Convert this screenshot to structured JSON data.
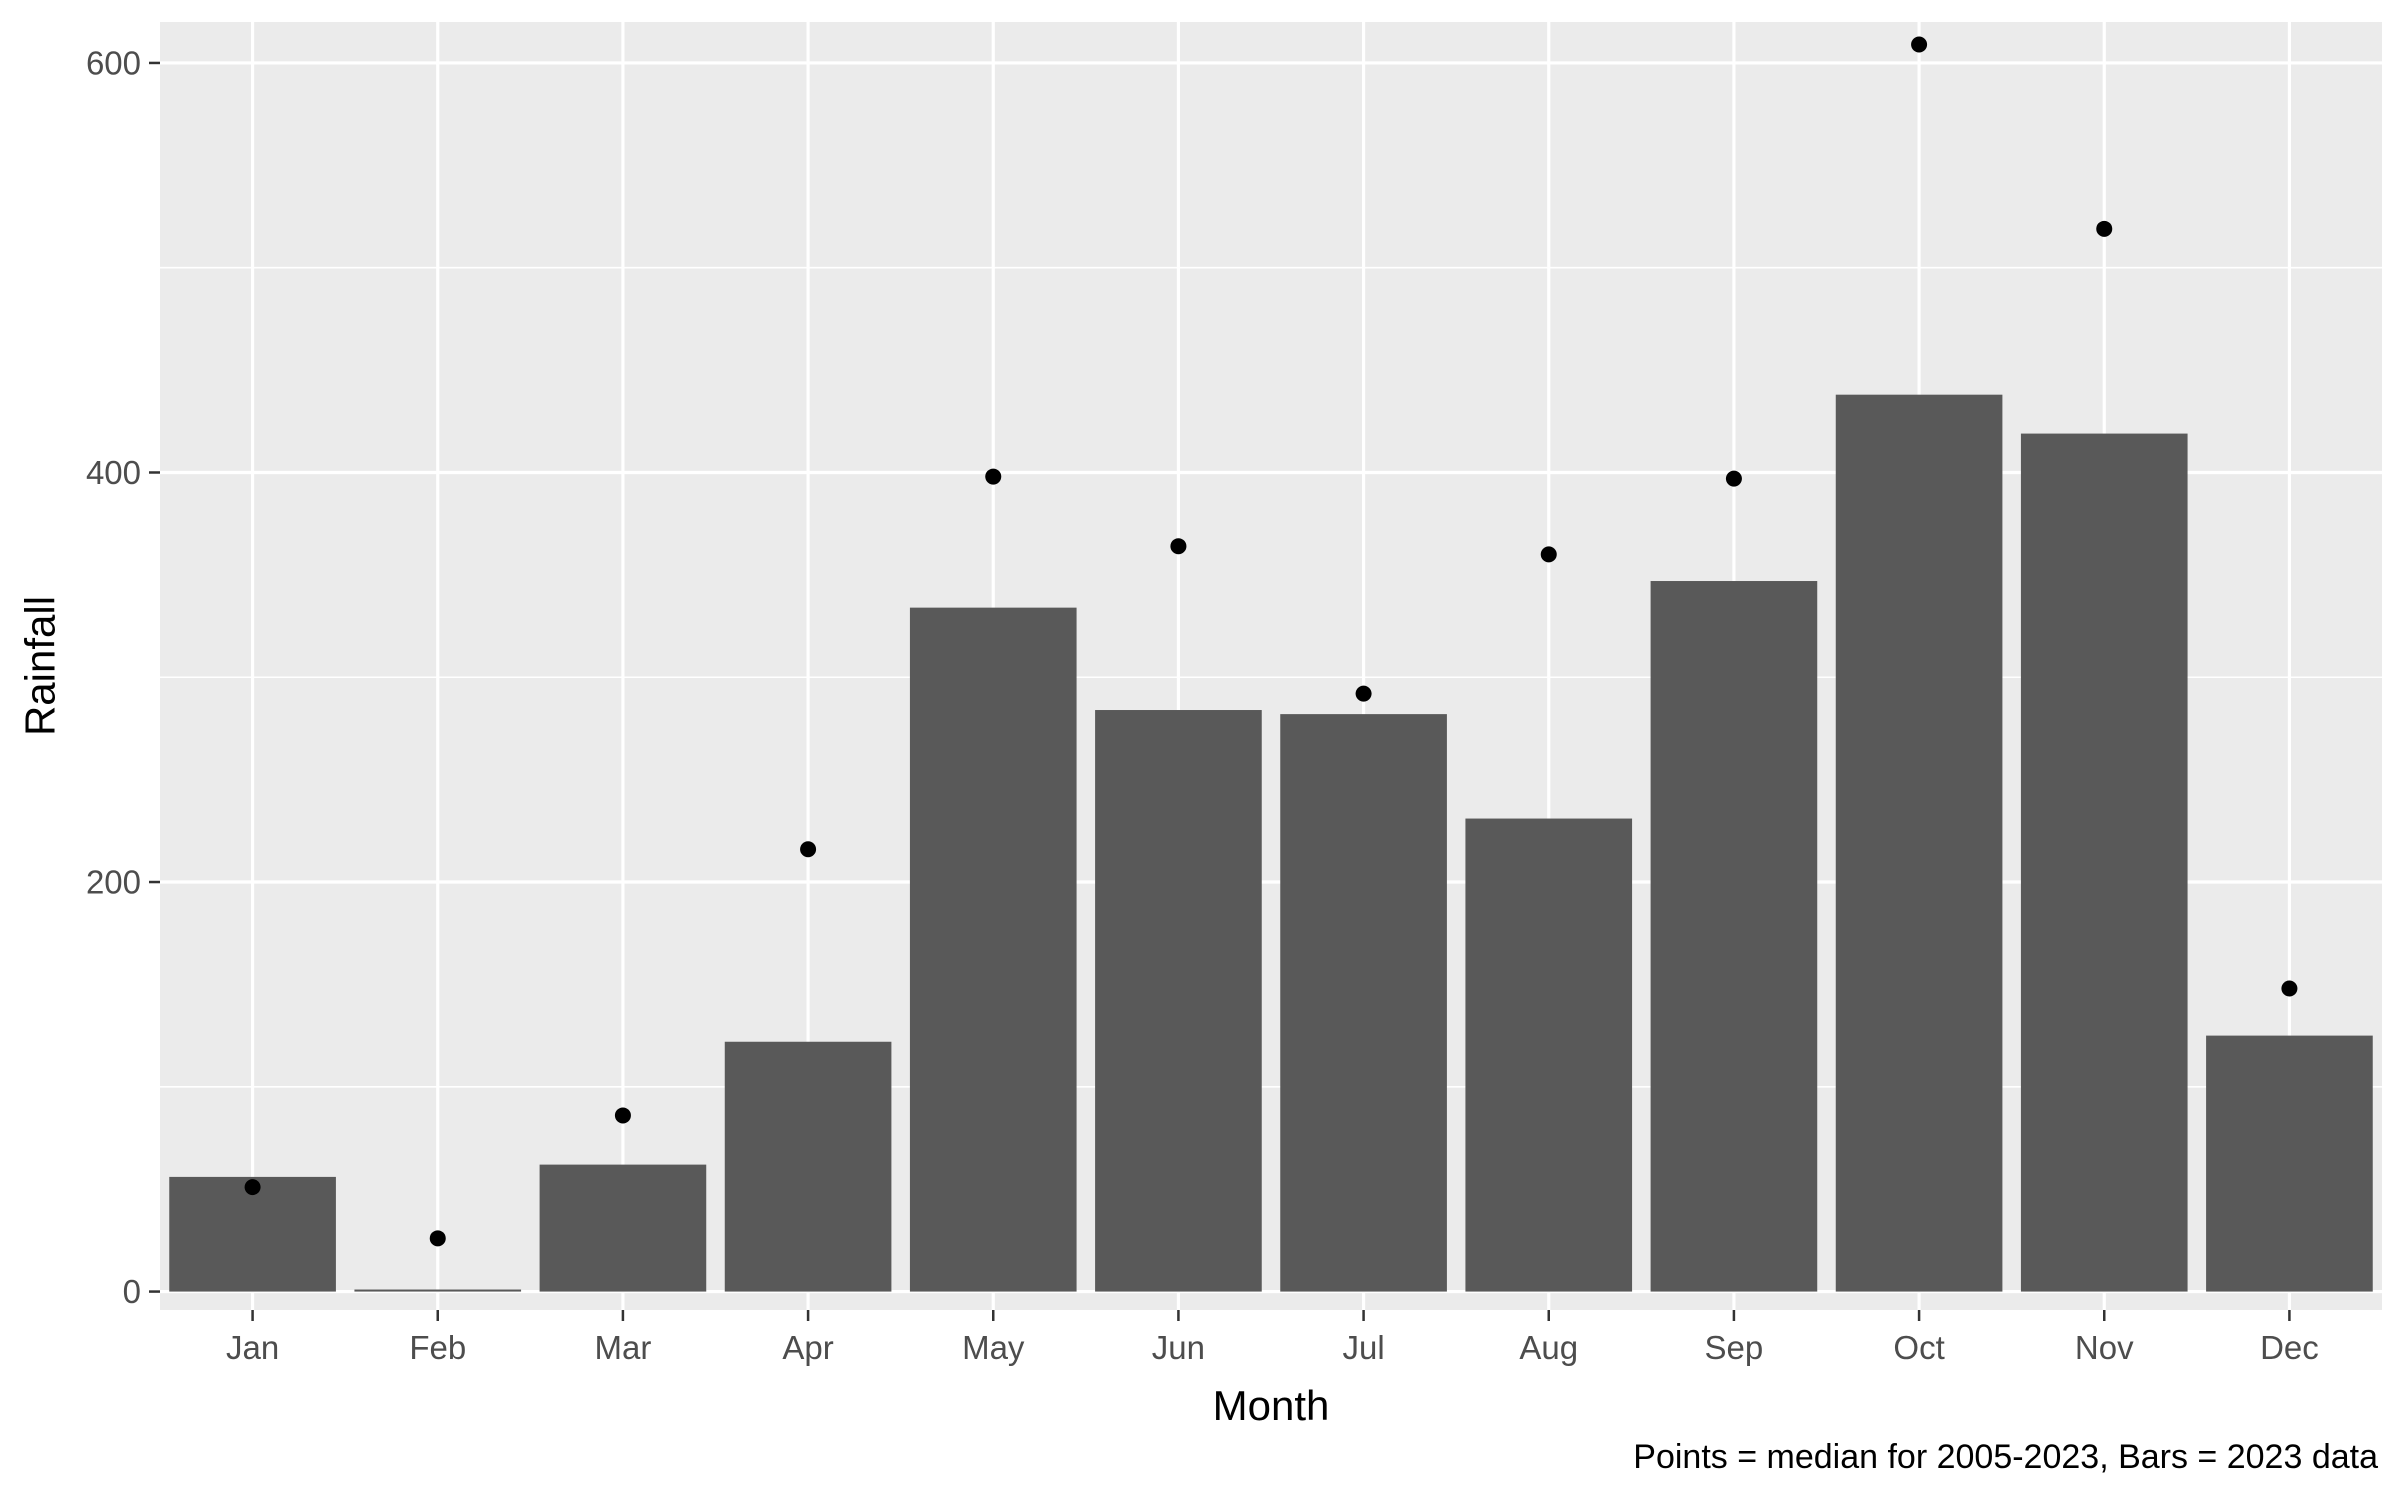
{
  "chart_data": {
    "type": "bar",
    "title": "",
    "xlabel": "Month",
    "ylabel": "Rainfall",
    "caption": "Points = median for 2005-2023, Bars = 2023 data",
    "categories": [
      "Jan",
      "Feb",
      "Mar",
      "Apr",
      "May",
      "Jun",
      "Jul",
      "Aug",
      "Sep",
      "Oct",
      "Nov",
      "Dec"
    ],
    "ylim": [
      -9,
      620
    ],
    "yticks": [
      0,
      200,
      400,
      600
    ],
    "ytick_labels": [
      "0",
      "200",
      "400",
      "600"
    ],
    "grid": true,
    "series": [
      {
        "type": "bar",
        "values": [
          56,
          1,
          62,
          122,
          334,
          284,
          282,
          231,
          347,
          438,
          419,
          125
        ]
      },
      {
        "type": "point",
        "values": [
          51,
          26,
          86,
          216,
          398,
          364,
          292,
          360,
          397,
          609,
          519,
          148
        ]
      }
    ],
    "colors": {
      "panel_background": "#ebebeb",
      "grid_major": "#ffffff",
      "grid_minor": "#ffffff",
      "bar_fill": "#595959",
      "point_fill": "#000000",
      "axis_tick": "#333333"
    }
  }
}
